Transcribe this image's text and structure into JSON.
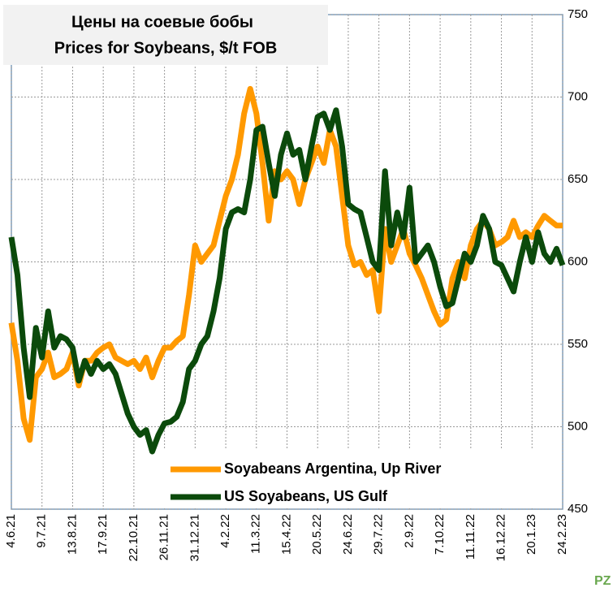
{
  "chart_data": {
    "type": "line",
    "title": [
      "Цены на соевые бобы",
      "Prices for Soybeans, $/t FOB"
    ],
    "categories": [
      "4.6.21",
      null,
      null,
      null,
      null,
      "9.7.21",
      null,
      null,
      null,
      null,
      "13.8.21",
      null,
      null,
      null,
      null,
      "17.9.21",
      null,
      null,
      null,
      null,
      "22.10.21",
      null,
      null,
      null,
      null,
      "26.11.21",
      null,
      null,
      null,
      null,
      "31.12.21",
      null,
      null,
      null,
      null,
      "4.2.22",
      null,
      null,
      null,
      null,
      "11.3.22",
      null,
      null,
      null,
      null,
      "15.4.22",
      null,
      null,
      null,
      null,
      "20.5.22",
      null,
      null,
      null,
      null,
      "24.6.22",
      null,
      null,
      null,
      null,
      "29.7.22",
      null,
      null,
      null,
      null,
      "2.9.22",
      null,
      null,
      null,
      null,
      "7.10.22",
      null,
      null,
      null,
      null,
      "11.11.22",
      null,
      null,
      null,
      null,
      "16.12.22",
      null,
      null,
      null,
      null,
      "20.1.23",
      null,
      null,
      null,
      null,
      "24.2.23"
    ],
    "series": [
      {
        "name": "Soyabeans Argentina, Up River",
        "color": "#ff9900",
        "values": [
          563,
          540,
          505,
          492,
          530,
          535,
          545,
          530,
          532,
          535,
          545,
          525,
          540,
          540,
          545,
          548,
          550,
          542,
          540,
          538,
          540,
          535,
          542,
          530,
          540,
          548,
          548,
          552,
          555,
          580,
          610,
          600,
          605,
          610,
          625,
          640,
          650,
          665,
          690,
          705,
          690,
          660,
          625,
          655,
          650,
          655,
          650,
          635,
          650,
          660,
          670,
          660,
          680,
          670,
          640,
          610,
          598,
          600,
          592,
          595,
          570,
          620,
          600,
          610,
          620,
          605,
          598,
          590,
          580,
          570,
          562,
          565,
          590,
          600,
          590,
          610,
          620,
          625,
          620,
          610,
          612,
          615,
          625,
          615,
          618,
          615,
          622,
          628,
          625,
          622,
          622
        ]
      },
      {
        "name": "US Soyabeans, US Gulf",
        "color": "#0b4a0b",
        "values": [
          615,
          592,
          548,
          518,
          560,
          542,
          570,
          548,
          555,
          553,
          548,
          528,
          540,
          532,
          540,
          535,
          538,
          532,
          520,
          508,
          500,
          495,
          498,
          485,
          495,
          502,
          503,
          506,
          515,
          535,
          540,
          550,
          555,
          570,
          590,
          620,
          630,
          632,
          630,
          650,
          680,
          682,
          660,
          640,
          665,
          678,
          665,
          668,
          650,
          670,
          688,
          690,
          680,
          692,
          670,
          635,
          632,
          630,
          615,
          600,
          595,
          655,
          610,
          630,
          615,
          645,
          600,
          605,
          610,
          600,
          585,
          573,
          575,
          590,
          605,
          600,
          610,
          628,
          620,
          600,
          598,
          590,
          582,
          600,
          615,
          600,
          618,
          605,
          600,
          608,
          598
        ]
      }
    ],
    "ylim": [
      450,
      750
    ],
    "yticks": [
      450,
      500,
      550,
      600,
      650,
      700,
      750
    ],
    "grid": true
  }
}
